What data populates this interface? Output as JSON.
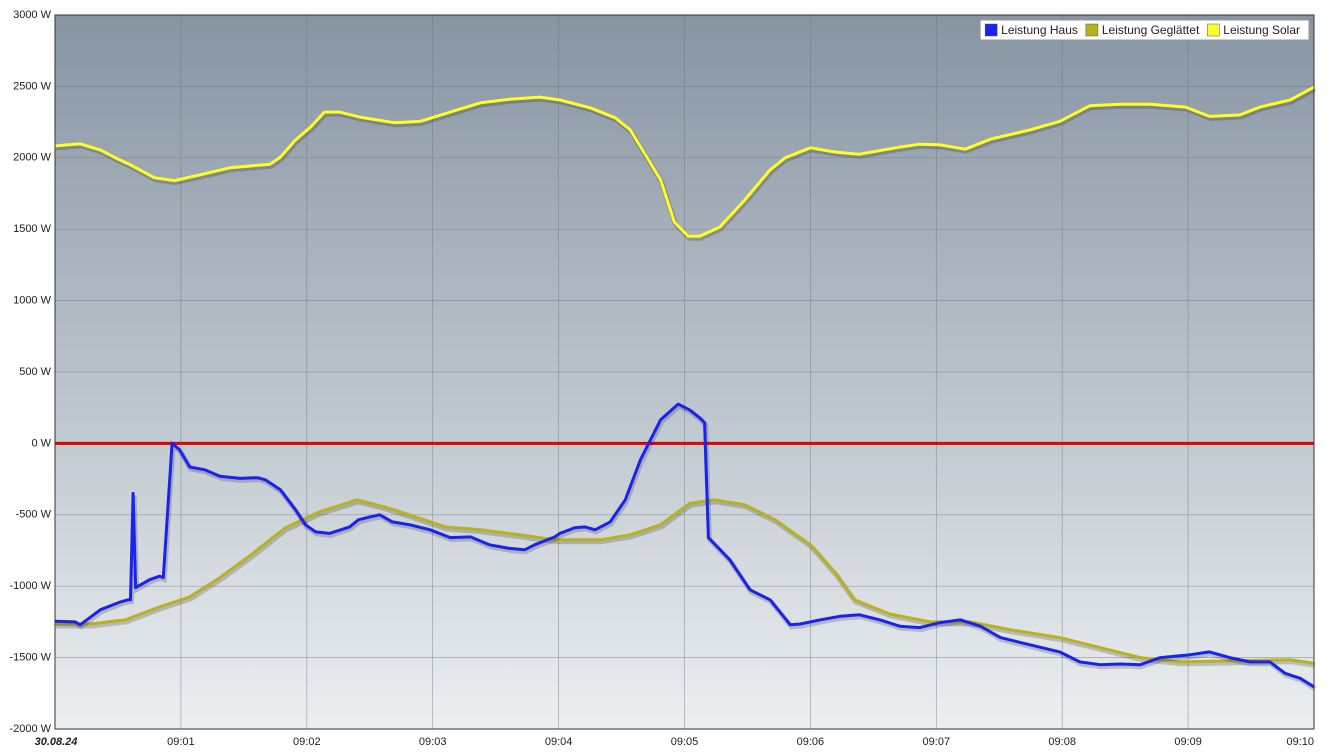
{
  "chart_data": {
    "type": "line",
    "xlim": [
      0,
      10
    ],
    "xticks": [
      {
        "value": 0,
        "label": "30.08.24"
      },
      {
        "value": 1,
        "label": "09:01"
      },
      {
        "value": 2,
        "label": "09:02"
      },
      {
        "value": 3,
        "label": "09:03"
      },
      {
        "value": 4,
        "label": "09:04"
      },
      {
        "value": 5,
        "label": "09:05"
      },
      {
        "value": 6,
        "label": "09:06"
      },
      {
        "value": 7,
        "label": "09:07"
      },
      {
        "value": 8,
        "label": "09:08"
      },
      {
        "value": 9,
        "label": "09:09"
      },
      {
        "value": 10,
        "label": "09:10"
      }
    ],
    "ylim": [
      -2000,
      3000
    ],
    "yticks": [
      {
        "value": -2000,
        "label": "-2000 W"
      },
      {
        "value": -1500,
        "label": "-1500 W"
      },
      {
        "value": -1000,
        "label": "-1000 W"
      },
      {
        "value": -500,
        "label": "-500 W"
      },
      {
        "value": 0,
        "label": "0 W"
      },
      {
        "value": 500,
        "label": "500 W"
      },
      {
        "value": 1000,
        "label": "1000 W"
      },
      {
        "value": 1500,
        "label": "1500 W"
      },
      {
        "value": 2000,
        "label": "2000 W"
      },
      {
        "value": 2500,
        "label": "2500 W"
      },
      {
        "value": 3000,
        "label": "3000 W"
      }
    ],
    "grid": true,
    "legend": "top-right",
    "reference_line": {
      "value": 0,
      "color": "#e00000"
    },
    "series": [
      {
        "name": "Leistung Haus",
        "color": "#1a22f0",
        "x": [
          0,
          0.16,
          0.2,
          0.36,
          0.52,
          0.58,
          0.6,
          0.62,
          0.64,
          0.68,
          0.75,
          0.83,
          0.86,
          0.93,
          0.99,
          1.07,
          1.19,
          1.31,
          1.47,
          1.61,
          1.67,
          1.79,
          1.91,
          1.99,
          2.07,
          2.18,
          2.34,
          2.41,
          2.5,
          2.58,
          2.68,
          2.82,
          2.98,
          3.14,
          3.3,
          3.45,
          3.61,
          3.73,
          3.81,
          3.97,
          4.01,
          4.13,
          4.21,
          4.29,
          4.41,
          4.53,
          4.65,
          4.81,
          4.95,
          5.04,
          5.12,
          5.16,
          5.19,
          5.36,
          5.52,
          5.68,
          5.84,
          5.92,
          6.08,
          6.24,
          6.39,
          6.55,
          6.71,
          6.87,
          7.03,
          7.19,
          7.35,
          7.51,
          7.74,
          7.98,
          8.14,
          8.3,
          8.46,
          8.62,
          8.78,
          9.02,
          9.17,
          9.33,
          9.49,
          9.65,
          9.77,
          9.89,
          10
        ],
        "values": [
          -1245,
          -1250,
          -1270,
          -1165,
          -1110,
          -1095,
          -1095,
          -350,
          -1010,
          -990,
          -955,
          -930,
          -940,
          0,
          -45,
          -165,
          -185,
          -230,
          -245,
          -240,
          -255,
          -325,
          -465,
          -570,
          -620,
          -630,
          -585,
          -535,
          -515,
          -500,
          -550,
          -570,
          -605,
          -660,
          -655,
          -710,
          -735,
          -745,
          -710,
          -655,
          -630,
          -590,
          -585,
          -605,
          -550,
          -395,
          -115,
          165,
          275,
          235,
          180,
          145,
          -660,
          -815,
          -1025,
          -1095,
          -1270,
          -1265,
          -1235,
          -1210,
          -1200,
          -1235,
          -1280,
          -1290,
          -1255,
          -1235,
          -1280,
          -1360,
          -1410,
          -1460,
          -1530,
          -1550,
          -1545,
          -1550,
          -1500,
          -1480,
          -1460,
          -1500,
          -1530,
          -1530,
          -1610,
          -1645,
          -1705
        ]
      },
      {
        "name": "Leistung Geglättet",
        "color": "#b9b21c",
        "x": [
          0,
          0.28,
          0.56,
          0.83,
          1.07,
          1.31,
          1.55,
          1.83,
          2.1,
          2.4,
          2.66,
          2.9,
          3.1,
          3.38,
          3.69,
          3.97,
          4.33,
          4.57,
          4.81,
          5.04,
          5.24,
          5.48,
          5.72,
          6,
          6.2,
          6.35,
          6.63,
          6.95,
          7.27,
          7.59,
          7.98,
          8.3,
          8.62,
          8.94,
          9.49,
          9.81,
          10
        ],
        "values": [
          -1265,
          -1265,
          -1235,
          -1145,
          -1075,
          -940,
          -785,
          -590,
          -480,
          -395,
          -455,
          -525,
          -585,
          -605,
          -640,
          -675,
          -675,
          -640,
          -570,
          -420,
          -395,
          -430,
          -535,
          -710,
          -910,
          -1095,
          -1195,
          -1250,
          -1250,
          -1305,
          -1360,
          -1430,
          -1500,
          -1530,
          -1520,
          -1515,
          -1540
        ]
      },
      {
        "name": "Leistung Solar",
        "color": "#ffff22",
        "x": [
          0,
          0.2,
          0.36,
          0.48,
          0.6,
          0.79,
          0.95,
          1.15,
          1.39,
          1.71,
          1.79,
          1.91,
          2.03,
          2.14,
          2.26,
          2.42,
          2.7,
          2.9,
          3.14,
          3.38,
          3.61,
          3.85,
          4.01,
          4.25,
          4.45,
          4.57,
          4.69,
          4.81,
          4.92,
          5.03,
          5.12,
          5.28,
          5.48,
          5.68,
          5.8,
          6,
          6.2,
          6.39,
          6.71,
          6.87,
          7.03,
          7.23,
          7.43,
          7.74,
          7.98,
          8.22,
          8.46,
          8.7,
          8.98,
          9.17,
          9.41,
          9.57,
          9.81,
          10
        ],
        "values": [
          2083,
          2097,
          2055,
          2000,
          1950,
          1860,
          1840,
          1880,
          1930,
          1955,
          2005,
          2125,
          2215,
          2320,
          2320,
          2285,
          2245,
          2255,
          2320,
          2385,
          2410,
          2425,
          2405,
          2350,
          2280,
          2195,
          2020,
          1845,
          1550,
          1450,
          1450,
          1515,
          1705,
          1915,
          2000,
          2070,
          2040,
          2025,
          2075,
          2095,
          2090,
          2060,
          2130,
          2195,
          2255,
          2365,
          2375,
          2375,
          2355,
          2290,
          2300,
          2355,
          2405,
          2495
        ]
      }
    ]
  }
}
